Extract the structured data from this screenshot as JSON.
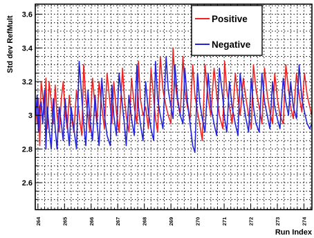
{
  "chart_data": {
    "type": "line",
    "title": "",
    "xlabel": "Run Index",
    "ylabel": "Std dev RefMult",
    "ylim": [
      2.44,
      3.66
    ],
    "xlim": [
      263.9,
      274.3
    ],
    "grid": true,
    "legend_position": "top-right",
    "y_ticks": [
      2.6,
      2.8,
      3,
      3.2,
      3.4,
      3.6
    ],
    "y_tick_labels": [
      "2.6",
      "2.8",
      "3",
      "3.2",
      "3.4",
      "3.6"
    ],
    "x_ticks": [
      264,
      265,
      266,
      267,
      268,
      269,
      270,
      271,
      272,
      273,
      274
    ],
    "x_tick_labels": [
      "264",
      "265",
      "266",
      "267",
      "268",
      "269",
      "270",
      "271",
      "272",
      "273",
      "274"
    ],
    "series": [
      {
        "name": "Positive",
        "color": "#ee2222",
        "x": [
          263.92,
          263.97,
          264.02,
          264.07,
          264.12,
          264.18,
          264.25,
          264.3,
          264.35,
          264.42,
          264.5,
          264.58,
          264.65,
          264.72,
          264.8,
          264.88,
          264.95,
          265.02,
          265.1,
          265.18,
          265.25,
          265.35,
          265.45,
          265.55,
          265.65,
          265.72,
          265.8,
          265.88,
          265.95,
          266.05,
          266.15,
          266.22,
          266.3,
          266.4,
          266.5,
          266.6,
          266.72,
          266.78,
          266.85,
          266.95,
          267.05,
          267.18,
          267.25,
          267.32,
          267.42,
          267.52,
          267.62,
          267.72,
          267.78,
          267.85,
          267.95,
          268.05,
          268.15,
          268.25,
          268.35,
          268.42,
          268.5,
          268.6,
          268.7,
          268.82,
          268.9,
          269.0,
          269.08,
          269.15,
          269.25,
          269.35,
          269.45,
          269.52,
          269.62,
          269.72,
          269.82,
          269.9,
          270.0,
          270.08,
          270.18,
          270.28,
          270.4,
          270.5,
          270.62,
          270.72,
          270.82,
          270.95,
          271.02,
          271.1,
          271.2,
          271.3,
          271.42,
          271.52,
          271.6,
          271.72,
          271.82,
          271.92,
          272.02,
          272.1,
          272.2,
          272.32,
          272.42,
          272.52,
          272.62,
          272.72,
          272.82,
          272.9,
          273.0,
          273.1,
          273.22,
          273.32,
          273.42,
          273.5,
          273.6,
          273.72,
          273.82,
          273.92,
          274.02,
          274.12,
          274.22,
          274.29
        ],
        "y": [
          3.05,
          2.95,
          3.1,
          2.82,
          3.2,
          3.12,
          3.0,
          3.22,
          2.92,
          3.2,
          3.08,
          2.95,
          3.18,
          3.0,
          2.9,
          3.1,
          3.2,
          3.02,
          2.92,
          3.12,
          3.0,
          2.9,
          3.15,
          3.0,
          2.88,
          3.3,
          3.1,
          3.0,
          2.9,
          3.22,
          3.05,
          2.95,
          3.2,
          3.05,
          2.92,
          3.25,
          3.05,
          2.95,
          3.2,
          3.02,
          2.9,
          3.28,
          3.1,
          3.0,
          2.9,
          3.22,
          3.05,
          2.95,
          3.32,
          3.1,
          3.0,
          3.05,
          2.92,
          3.28,
          3.1,
          2.98,
          2.9,
          3.35,
          3.15,
          3.05,
          3.0,
          2.95,
          3.4,
          3.2,
          3.08,
          3.0,
          3.35,
          3.15,
          3.05,
          2.98,
          3.3,
          3.12,
          3.02,
          2.95,
          2.85,
          3.3,
          3.1,
          3.0,
          3.28,
          3.12,
          3.0,
          2.92,
          3.32,
          3.15,
          3.05,
          2.95,
          3.25,
          3.1,
          3.0,
          3.22,
          3.1,
          3.0,
          2.92,
          3.3,
          3.15,
          3.05,
          2.95,
          3.28,
          3.12,
          3.02,
          2.95,
          3.25,
          3.1,
          3.0,
          2.95,
          3.3,
          3.15,
          3.05,
          2.98,
          3.25,
          3.12,
          3.02,
          3.25,
          3.12,
          3.05,
          3.0
        ]
      },
      {
        "name": "Negative",
        "color": "#2222dd",
        "x": [
          263.92,
          263.97,
          264.02,
          264.07,
          264.12,
          264.18,
          264.25,
          264.3,
          264.35,
          264.42,
          264.5,
          264.58,
          264.65,
          264.72,
          264.8,
          264.88,
          264.95,
          265.02,
          265.1,
          265.18,
          265.25,
          265.35,
          265.45,
          265.55,
          265.65,
          265.72,
          265.8,
          265.88,
          265.95,
          266.05,
          266.15,
          266.22,
          266.3,
          266.4,
          266.5,
          266.6,
          266.72,
          266.78,
          266.85,
          266.95,
          267.05,
          267.18,
          267.25,
          267.32,
          267.42,
          267.52,
          267.62,
          267.72,
          267.78,
          267.85,
          267.95,
          268.05,
          268.15,
          268.25,
          268.35,
          268.42,
          268.5,
          268.6,
          268.7,
          268.82,
          268.9,
          269.0,
          269.08,
          269.15,
          269.25,
          269.35,
          269.45,
          269.52,
          269.62,
          269.72,
          269.82,
          269.9,
          270.0,
          270.08,
          270.18,
          270.28,
          270.4,
          270.5,
          270.62,
          270.72,
          270.82,
          270.95,
          271.02,
          271.1,
          271.2,
          271.3,
          271.42,
          271.52,
          271.6,
          271.72,
          271.82,
          271.92,
          272.02,
          272.1,
          272.2,
          272.32,
          272.42,
          272.52,
          272.62,
          272.72,
          272.82,
          272.9,
          273.0,
          273.1,
          273.22,
          273.32,
          273.42,
          273.5,
          273.6,
          273.72,
          273.82,
          273.92,
          274.02,
          274.12,
          274.22,
          274.29
        ],
        "y": [
          3.0,
          3.12,
          2.9,
          3.05,
          3.08,
          2.95,
          3.15,
          2.8,
          3.05,
          2.92,
          2.8,
          3.1,
          2.92,
          2.8,
          3.05,
          2.95,
          2.85,
          3.1,
          2.95,
          2.82,
          3.05,
          2.92,
          2.8,
          3.32,
          3.1,
          2.95,
          2.82,
          3.15,
          2.98,
          2.85,
          3.12,
          2.95,
          2.82,
          3.22,
          3.0,
          2.88,
          2.82,
          3.18,
          3.0,
          2.88,
          3.25,
          3.05,
          2.95,
          2.82,
          3.12,
          2.98,
          2.88,
          3.3,
          3.05,
          2.95,
          2.85,
          3.2,
          3.02,
          2.92,
          2.85,
          3.32,
          3.1,
          3.0,
          2.92,
          3.35,
          3.15,
          3.05,
          2.98,
          3.3,
          3.1,
          3.0,
          2.95,
          3.28,
          3.08,
          2.95,
          2.82,
          2.78,
          3.25,
          3.08,
          2.98,
          2.9,
          3.25,
          3.05,
          2.95,
          2.88,
          3.28,
          3.1,
          2.98,
          2.9,
          3.2,
          3.05,
          2.95,
          2.88,
          3.25,
          3.08,
          2.98,
          2.9,
          3.22,
          3.05,
          2.95,
          2.9,
          3.25,
          3.08,
          3.0,
          2.92,
          3.2,
          3.05,
          2.98,
          2.92,
          3.22,
          3.08,
          3.0,
          3.2,
          3.05,
          2.98,
          3.3,
          3.1,
          3.02,
          2.95,
          2.92,
          2.95
        ]
      }
    ]
  }
}
